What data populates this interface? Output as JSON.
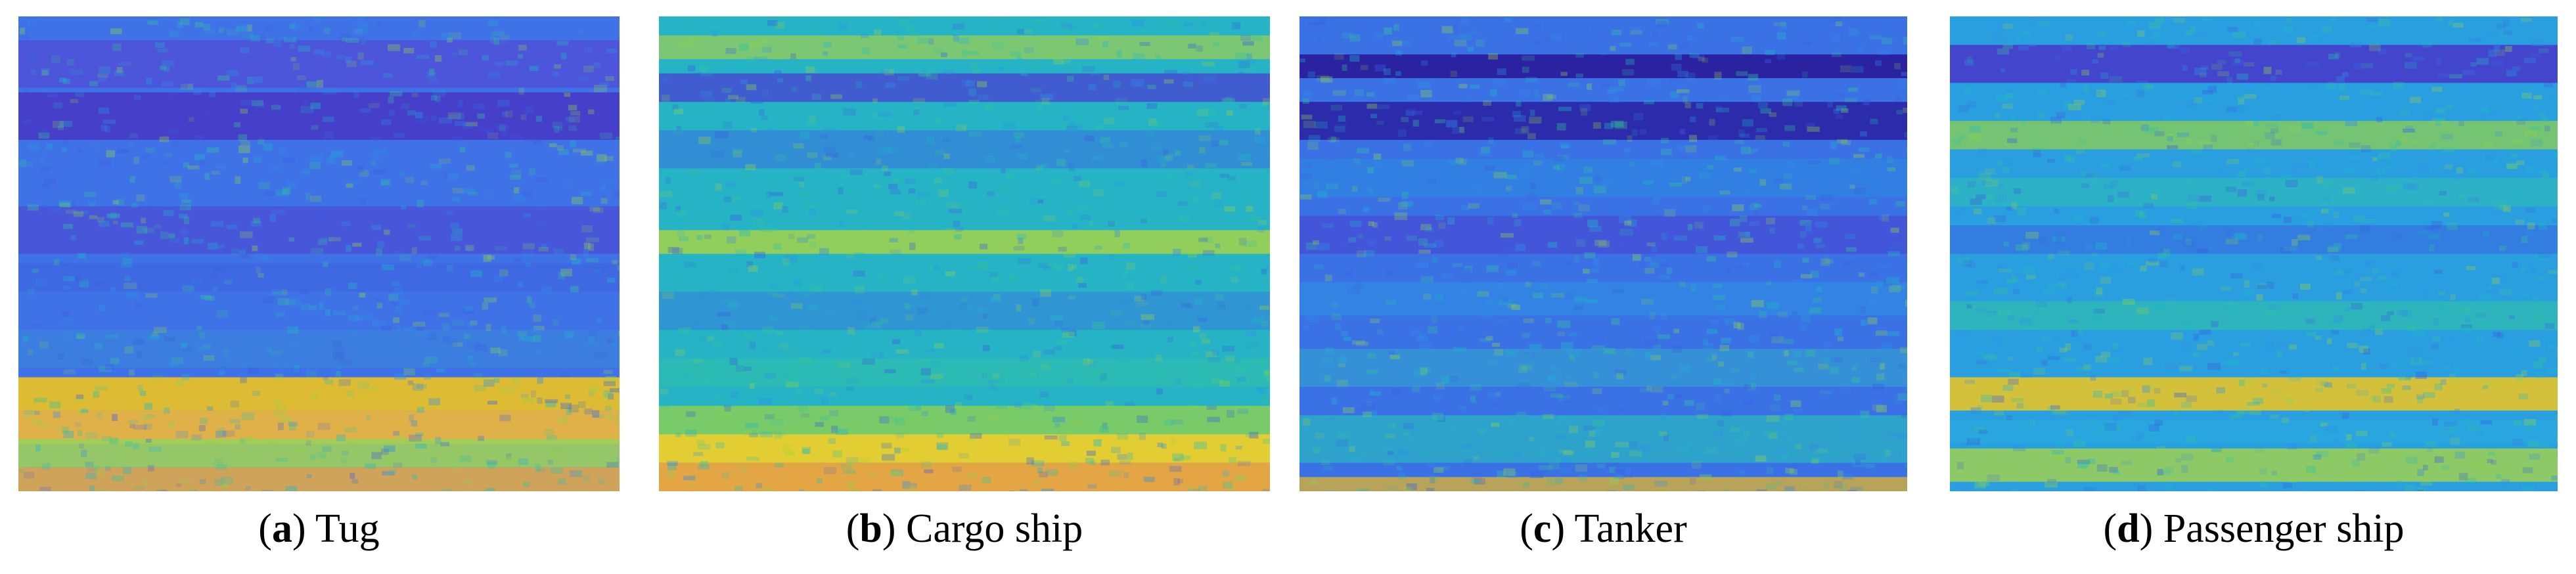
{
  "figure": {
    "colormap": [
      "#2a1fa8",
      "#3a5fe0",
      "#2f8fe6",
      "#1fb8c8",
      "#35c49a",
      "#8fd050",
      "#e6df2a",
      "#f2b238"
    ],
    "panels": [
      {
        "id": "tug",
        "letter": "a",
        "label": "Tug",
        "base_color": "#3f72e6",
        "bands": [
          {
            "y": 0.05,
            "h": 0.1,
            "color": "#5a3fd0",
            "opacity": 0.55
          },
          {
            "y": 0.16,
            "h": 0.1,
            "color": "#4a2fc0",
            "opacity": 0.75
          },
          {
            "y": 0.4,
            "h": 0.1,
            "color": "#5040d0",
            "opacity": 0.55
          },
          {
            "y": 0.52,
            "h": 0.06,
            "color": "#3f5fe0",
            "opacity": 0.5
          },
          {
            "y": 0.66,
            "h": 0.08,
            "color": "#3a8ad8",
            "opacity": 0.5
          },
          {
            "y": 0.76,
            "h": 0.07,
            "color": "#e6c02a",
            "opacity": 0.95
          },
          {
            "y": 0.83,
            "h": 0.07,
            "color": "#e9b440",
            "opacity": 0.95
          },
          {
            "y": 0.89,
            "h": 0.06,
            "color": "#9fcf5a",
            "opacity": 0.9
          },
          {
            "y": 0.95,
            "h": 0.05,
            "color": "#e0a84a",
            "opacity": 0.9
          }
        ]
      },
      {
        "id": "cargo-ship",
        "letter": "b",
        "label": "Cargo ship",
        "base_color": "#26b3c6",
        "bands": [
          {
            "y": 0.04,
            "h": 0.05,
            "color": "#9fd050",
            "opacity": 0.7
          },
          {
            "y": 0.12,
            "h": 0.06,
            "color": "#4a3fd0",
            "opacity": 0.75
          },
          {
            "y": 0.24,
            "h": 0.08,
            "color": "#3a6fe0",
            "opacity": 0.55
          },
          {
            "y": 0.45,
            "h": 0.05,
            "color": "#a6d248",
            "opacity": 0.85
          },
          {
            "y": 0.58,
            "h": 0.08,
            "color": "#3a78e0",
            "opacity": 0.5
          },
          {
            "y": 0.72,
            "h": 0.06,
            "color": "#2fc0a8",
            "opacity": 0.6
          },
          {
            "y": 0.82,
            "h": 0.06,
            "color": "#8fd050",
            "opacity": 0.8
          },
          {
            "y": 0.88,
            "h": 0.06,
            "color": "#ecd02a",
            "opacity": 0.95
          },
          {
            "y": 0.94,
            "h": 0.06,
            "color": "#eea43e",
            "opacity": 0.95
          }
        ]
      },
      {
        "id": "tanker",
        "letter": "c",
        "label": "Tanker",
        "base_color": "#3a72e6",
        "bands": [
          {
            "y": 0.08,
            "h": 0.05,
            "color": "#2a1a9a",
            "opacity": 0.9
          },
          {
            "y": 0.18,
            "h": 0.08,
            "color": "#2a1fa0",
            "opacity": 0.85
          },
          {
            "y": 0.3,
            "h": 0.08,
            "color": "#2a8adf",
            "opacity": 0.55
          },
          {
            "y": 0.42,
            "h": 0.08,
            "color": "#4a40d0",
            "opacity": 0.55
          },
          {
            "y": 0.56,
            "h": 0.07,
            "color": "#2a9ae0",
            "opacity": 0.45
          },
          {
            "y": 0.7,
            "h": 0.08,
            "color": "#2faec8",
            "opacity": 0.5
          },
          {
            "y": 0.84,
            "h": 0.1,
            "color": "#28b8c0",
            "opacity": 0.7
          },
          {
            "y": 0.97,
            "h": 0.03,
            "color": "#c6a84a",
            "opacity": 0.9
          }
        ]
      },
      {
        "id": "passenger-ship",
        "letter": "d",
        "label": "Passenger ship",
        "base_color": "#2a9fe0",
        "bands": [
          {
            "y": 0.06,
            "h": 0.08,
            "color": "#4a30c8",
            "opacity": 0.8
          },
          {
            "y": 0.1,
            "h": 0.08,
            "color": "#e8d02a",
            "opacity": 0.0
          },
          {
            "y": 0.22,
            "h": 0.06,
            "color": "#8fd050",
            "opacity": 0.75
          },
          {
            "y": 0.34,
            "h": 0.06,
            "color": "#2fc0b0",
            "opacity": 0.55
          },
          {
            "y": 0.44,
            "h": 0.06,
            "color": "#3a60e0",
            "opacity": 0.55
          },
          {
            "y": 0.6,
            "h": 0.06,
            "color": "#2fc4a0",
            "opacity": 0.55
          },
          {
            "y": 0.76,
            "h": 0.07,
            "color": "#e6c42a",
            "opacity": 0.9
          },
          {
            "y": 0.85,
            "h": 0.05,
            "color": "#2aa8e0",
            "opacity": 0.7
          },
          {
            "y": 0.91,
            "h": 0.07,
            "color": "#9fd050",
            "opacity": 0.85
          }
        ]
      }
    ]
  }
}
